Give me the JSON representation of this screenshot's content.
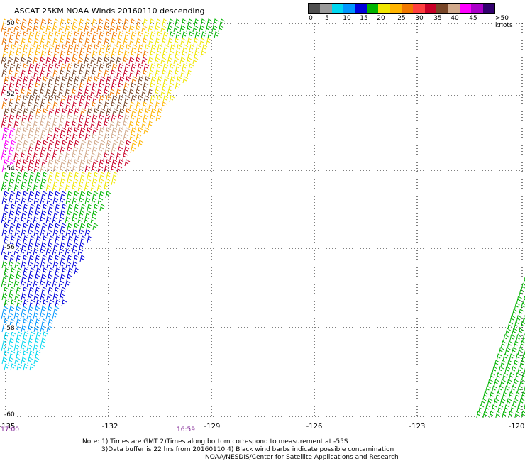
{
  "title": "ASCAT 25KM NOAA Winds 20160110 descending",
  "colors": [
    "#505050",
    "#9a9a9a",
    "#00d7f0",
    "#0096ff",
    "#0000dc",
    "#00b400",
    "#f0e600",
    "#ffb400",
    "#f07800",
    "#ff4040",
    "#c80028",
    "#784628",
    "#d2aa8c",
    "#ff00ff",
    "#aa00c8",
    "#32006e"
  ],
  "scale_labels": [
    "0",
    "5",
    "10",
    "15",
    "20",
    "25",
    "30",
    "35",
    "40",
    "45",
    ">50 knots"
  ],
  "y_labels": [
    "-50",
    "-52",
    "-54",
    "-56",
    "-58",
    "-60"
  ],
  "x_labels": [
    "-135",
    "-132",
    "-129",
    "-126",
    "-123",
    "-120"
  ],
  "time_labels": [
    "17:00",
    "16:59"
  ],
  "notes": [
    "Note: 1) Times are GMT 2)Times along bottom correspond to measurement at -55S",
    "3)Data buffer is 22 hrs from 20160110 4) Black wind barbs indicate possible contamination",
    "NOAA/NESDIS/Center for Satellite Applications and Research"
  ]
}
